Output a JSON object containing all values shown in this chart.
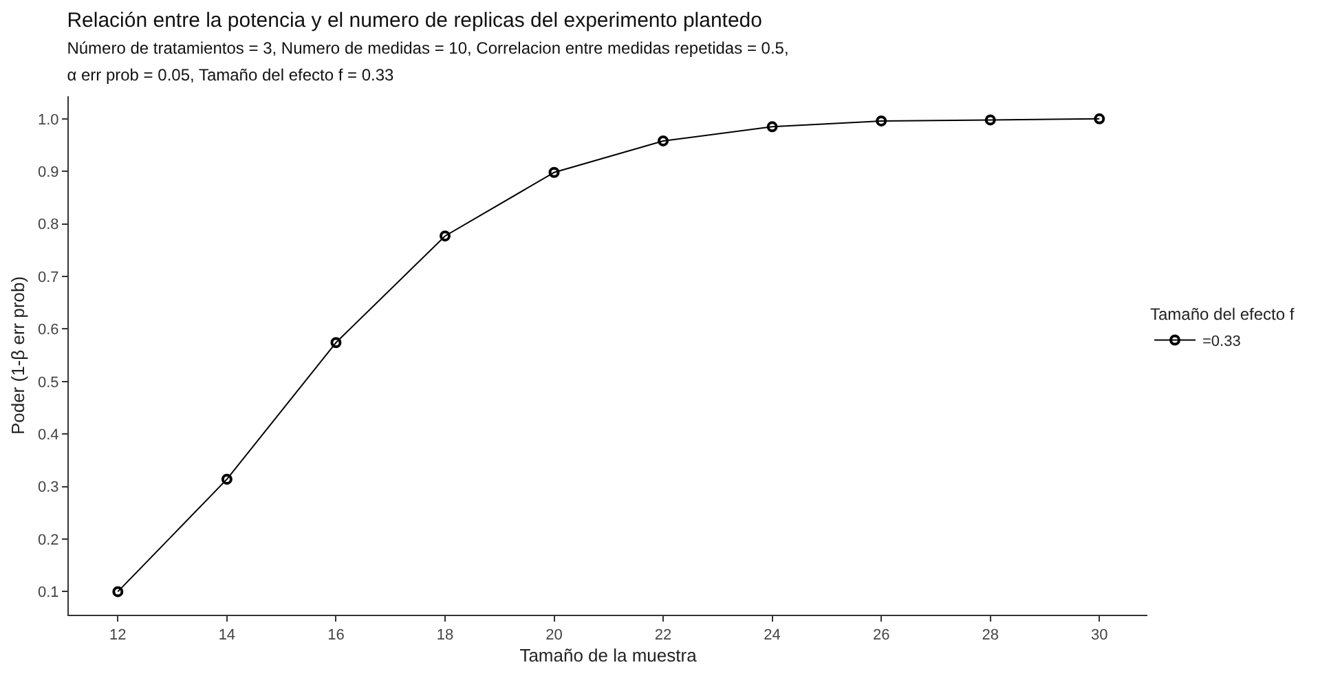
{
  "chart_data": {
    "type": "line",
    "title": "Relación entre la potencia y el numero de replicas del experimento plantedo",
    "subtitle": "Número de tratamientos = 3, Numero de medidas = 10, Correlacion entre medidas repetidas = 0.5,\nα err prob = 0.05, Tamaño del efecto f = 0.33",
    "xlabel": "Tamaño de la muestra",
    "ylabel": "Poder (1-β err prob)",
    "legend_title": "Tamaño del efecto f",
    "x": [
      12,
      14,
      16,
      18,
      20,
      22,
      24,
      26,
      28,
      30
    ],
    "series": [
      {
        "name": "=0.33",
        "color": "#000000",
        "values": [
          0.1,
          0.314,
          0.574,
          0.777,
          0.898,
          0.958,
          0.985,
          0.996,
          0.998,
          1.0
        ]
      }
    ],
    "xlim": [
      11.1,
      30.88
    ],
    "ylim": [
      0.056,
      1.043
    ],
    "xticks": [
      12,
      14,
      16,
      18,
      20,
      22,
      24,
      26,
      28,
      30
    ],
    "yticks": [
      0.1,
      0.2,
      0.3,
      0.4,
      0.5,
      0.6,
      0.7,
      0.8,
      0.9,
      {
        "value": 1,
        "label": "1.0"
      }
    ],
    "legend": "right",
    "marker": "circle",
    "line_style": "solid"
  }
}
